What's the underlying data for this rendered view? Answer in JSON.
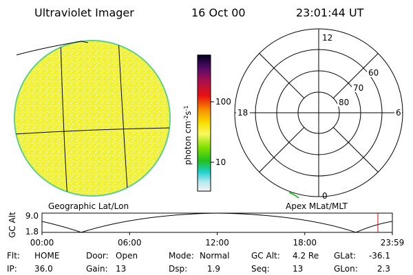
{
  "header": {
    "title": "Ultraviolet Imager",
    "date": "16 Oct 00",
    "time": "23:01:44 UT"
  },
  "colorbar": {
    "label": [
      "photon cm",
      "-2",
      "s",
      "-1"
    ],
    "ticks": [
      "100",
      "10"
    ]
  },
  "left_panel": {
    "caption": "Geographic Lat/Lon"
  },
  "right_panel": {
    "caption": "Apex MLat/MLT",
    "mlt_labels": [
      "12",
      "18",
      "6",
      "0"
    ],
    "mlat_labels": [
      "60",
      "70",
      "80"
    ]
  },
  "altitude_plot": {
    "ylabel": "GC Alt",
    "yticks": [
      "9.0",
      "1.8"
    ],
    "xticks": [
      "00:00",
      "06:00",
      "12:00",
      "18:00",
      "23:59"
    ]
  },
  "footer": {
    "rows": [
      [
        {
          "label": "Flt:",
          "value": "HOME"
        },
        {
          "label": "Door:",
          "value": "Open"
        },
        {
          "label": "Mode:",
          "value": "Normal"
        },
        {
          "label": "GC Alt:",
          "value": "4.2 Re"
        },
        {
          "label": "GLat:",
          "value": "-36.1"
        }
      ],
      [
        {
          "label": "IP:",
          "value": "36.0"
        },
        {
          "label": "Gain:",
          "value": "13"
        },
        {
          "label": "Dsp:",
          "value": "1.9"
        },
        {
          "label": "Seq:",
          "value": "13"
        },
        {
          "label": "GLon:",
          "value": "2.3"
        }
      ]
    ]
  }
}
